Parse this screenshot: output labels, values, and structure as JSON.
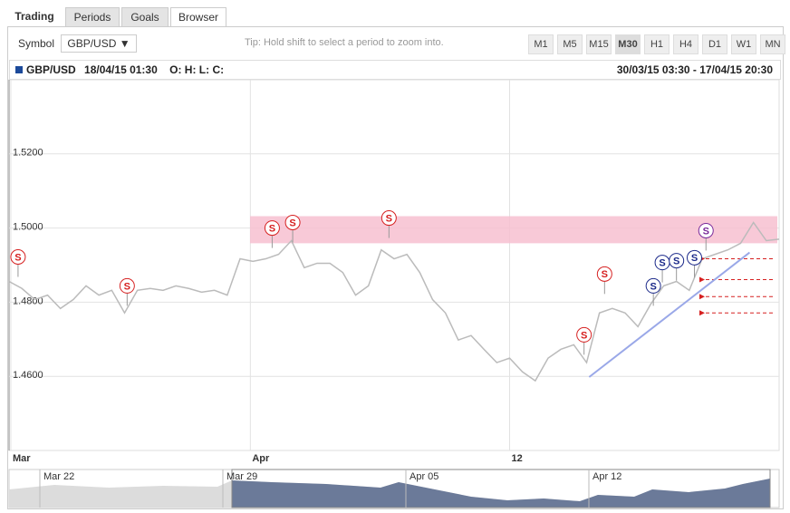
{
  "tabs": [
    "Trading",
    "Periods",
    "Goals",
    "Browser"
  ],
  "toolbar": {
    "symbol_label": "Symbol",
    "symbol": "GBP/USD",
    "tip": "Tip: Hold shift to select a period to zoom into.",
    "periods": [
      "M1",
      "M5",
      "M15",
      "M30",
      "H1",
      "H4",
      "D1",
      "W1",
      "MN"
    ],
    "active_period": "M30"
  },
  "info": {
    "symbol": "GBP/USD",
    "time": "18/04/15 01:30",
    "ohlc": "O: H: L: C:",
    "range": "30/03/15 03:30 - 17/04/15 20:30"
  },
  "navigator": {
    "labels": [
      "Mar 22",
      "Mar 29",
      "Apr 05",
      "Apr 12"
    ]
  },
  "chart_data": {
    "type": "line",
    "color": "#bbbbbb",
    "grid": true,
    "values": [
      1.4856,
      1.4837,
      1.4807,
      1.4819,
      1.4783,
      1.4807,
      1.4844,
      1.4819,
      1.4832,
      1.4771,
      1.4832,
      1.4837,
      1.4832,
      1.4844,
      1.4837,
      1.4827,
      1.4832,
      1.4819,
      1.4917,
      1.491,
      1.4917,
      1.4929,
      1.4966,
      1.4893,
      1.4905,
      1.4905,
      1.488,
      1.4819,
      1.4844,
      1.4941,
      1.4917,
      1.4929,
      1.488,
      1.4807,
      1.4771,
      1.4698,
      1.471,
      1.4673,
      1.4637,
      1.4649,
      1.4612,
      1.4588,
      1.4649,
      1.4673,
      1.4685,
      1.4637,
      1.4771,
      1.4783,
      1.4771,
      1.4734,
      1.4795,
      1.4844,
      1.4856,
      1.4832,
      1.4917,
      1.4929,
      1.4941,
      1.4959,
      1.5015,
      1.4966,
      1.497
    ],
    "xlim": [
      0,
      60
    ],
    "xticks": [
      {
        "value": 0.14,
        "label": "Mar"
      },
      {
        "value": 18.8,
        "label": "Apr"
      },
      {
        "value": 39.0,
        "label": "12"
      }
    ],
    "ylim": [
      1.44,
      1.54
    ],
    "yticks": [
      {
        "value": 1.46,
        "label": "1.4600"
      },
      {
        "value": 1.48,
        "label": "1.4800"
      },
      {
        "value": 1.5,
        "label": "1.5000"
      },
      {
        "value": 1.52,
        "label": "1.5200"
      }
    ],
    "zone": [
      1.4959,
      1.5032
    ],
    "zone_color": "#f7bfd0",
    "support_levels": [
      1.4917,
      1.4861,
      1.4815,
      1.4771
    ],
    "support_color": "#d62020",
    "trend_line": {
      "x": [
        45.2,
        57.7
      ],
      "y": [
        1.4598,
        1.4934
      ],
      "color": "#9aa8e8"
    },
    "signals": [
      {
        "x": 0.7,
        "y": 1.4922,
        "label": "S",
        "color": "#d62020"
      },
      {
        "x": 9.2,
        "y": 1.4844,
        "label": "S",
        "color": "#d62020"
      },
      {
        "x": 20.5,
        "y": 1.5,
        "label": "S",
        "color": "#d62020"
      },
      {
        "x": 22.1,
        "y": 1.5015,
        "label": "S",
        "color": "#d62020"
      },
      {
        "x": 29.6,
        "y": 1.5027,
        "label": "S",
        "color": "#d62020"
      },
      {
        "x": 44.8,
        "y": 1.4712,
        "label": "S",
        "color": "#d62020"
      },
      {
        "x": 46.4,
        "y": 1.4876,
        "label": "S",
        "color": "#d62020"
      },
      {
        "x": 50.2,
        "y": 1.4844,
        "label": "S",
        "color": "#1c2a8a"
      },
      {
        "x": 50.9,
        "y": 1.4907,
        "label": "S",
        "color": "#1c2a8a"
      },
      {
        "x": 52.0,
        "y": 1.4912,
        "label": "S",
        "color": "#1c2a8a"
      },
      {
        "x": 53.4,
        "y": 1.492,
        "label": "S",
        "color": "#1c2a8a"
      },
      {
        "x": 54.3,
        "y": 1.4993,
        "label": "S",
        "color": "#7a2a9a"
      }
    ]
  }
}
